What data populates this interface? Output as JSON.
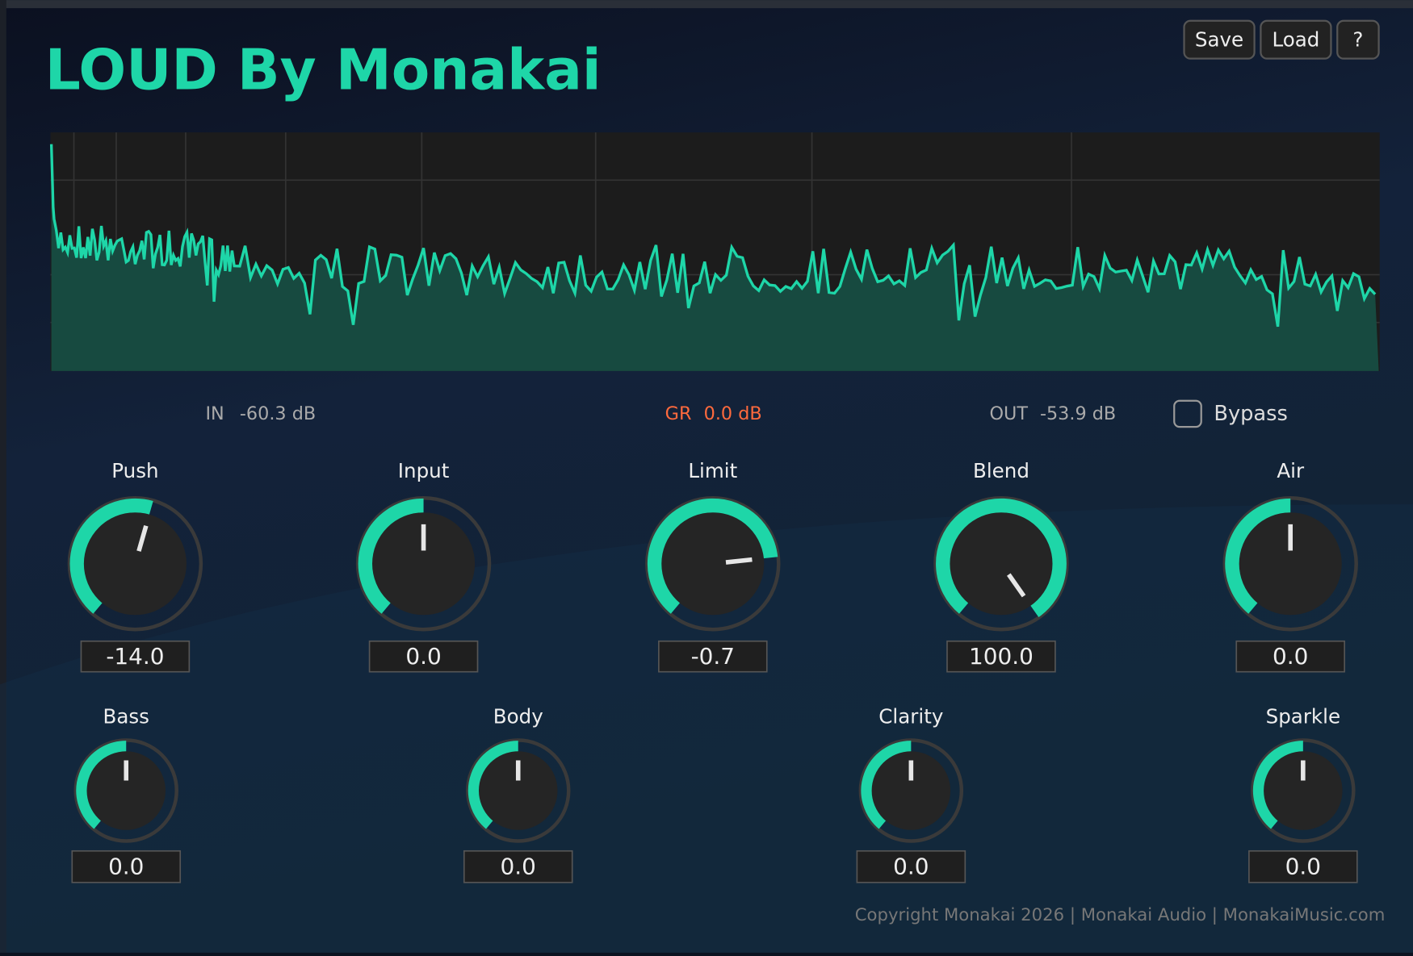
{
  "header": {
    "title": "LOUD By Monakai",
    "buttons": [
      "Save",
      "Load",
      "?"
    ]
  },
  "meters": {
    "in_label": "IN",
    "in_value": "-60.3 dB",
    "gr_label": "GR",
    "gr_value": "0.0 dB",
    "out_label": "OUT",
    "out_value": "-53.9 dB",
    "bypass": "Bypass"
  },
  "knobs_main": [
    {
      "label": "Push",
      "value": "-14.0"
    },
    {
      "label": "Input",
      "value": "0.0"
    },
    {
      "label": "Limit",
      "value": "-0.7"
    },
    {
      "label": "Blend",
      "value": "100.0"
    },
    {
      "label": "Air",
      "value": "0.0"
    }
  ],
  "knobs_eq": [
    {
      "label": "Bass",
      "value": "0.0"
    },
    {
      "label": "Body",
      "value": "0.0"
    },
    {
      "label": "Clarity",
      "value": "0.0"
    },
    {
      "label": "Sparkle",
      "value": "0.0"
    }
  ],
  "footer": "Copyright Monakai 2026 | Monakai Audio | MonakaiMusic.com"
}
